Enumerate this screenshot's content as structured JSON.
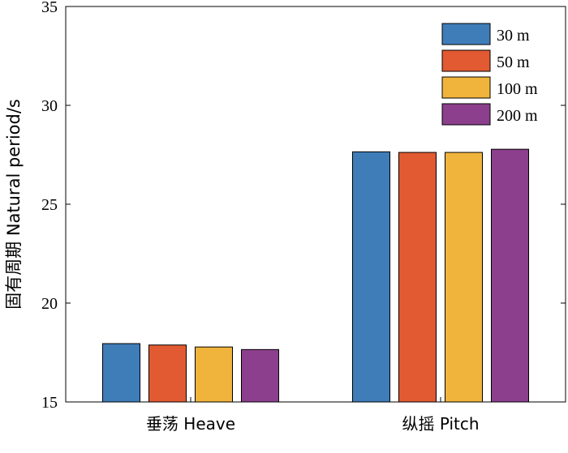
{
  "chart_data": {
    "type": "bar",
    "title": "",
    "xlabel": "",
    "ylabel": "固有周期 Natural period/s",
    "ylim": [
      15,
      35
    ],
    "yticks": [
      15,
      20,
      25,
      30,
      35
    ],
    "categories": [
      "垂荡 Heave",
      "纵摇 Pitch"
    ],
    "series": [
      {
        "name": "30 m",
        "color": "#3f7db8",
        "values": [
          17.95,
          27.65
        ]
      },
      {
        "name": "50 m",
        "color": "#e15a32",
        "values": [
          17.88,
          27.62
        ]
      },
      {
        "name": "100 m",
        "color": "#f0b43c",
        "values": [
          17.78,
          27.62
        ]
      },
      {
        "name": "200 m",
        "color": "#8b3f8c",
        "values": [
          17.65,
          27.78
        ]
      }
    ],
    "legend_position": "top-right",
    "grid": false
  }
}
